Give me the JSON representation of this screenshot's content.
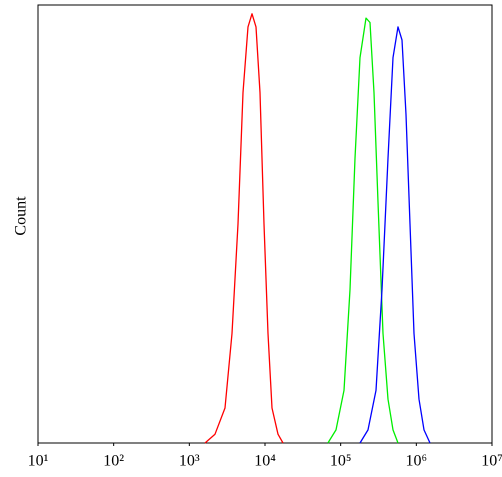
{
  "chart_data": {
    "type": "line",
    "y_label": "Count",
    "xscale": "log",
    "xlim": [
      10,
      10000000
    ],
    "ylim": [
      0,
      100
    ],
    "xticks": [
      {
        "value": 10,
        "label": "10¹"
      },
      {
        "value": 100,
        "label": "10²"
      },
      {
        "value": 1000,
        "label": "10³"
      },
      {
        "value": 10000,
        "label": "10⁴"
      },
      {
        "value": 100000,
        "label": "10⁵"
      },
      {
        "value": 1000000,
        "label": "10⁶"
      },
      {
        "value": 10000000,
        "label": "10⁷"
      }
    ],
    "series": [
      {
        "color": "#ff0000",
        "x": [
          1610,
          2183,
          2958,
          3664,
          4395,
          5117,
          5957,
          6730,
          7603,
          8590,
          9700,
          10960,
          12360,
          14860,
          17300
        ],
        "values": [
          0,
          2,
          8,
          25,
          50,
          80,
          95,
          98,
          95,
          80,
          50,
          25,
          8,
          2,
          0
        ]
      },
      {
        "color": "#00ee00",
        "x": [
          67900,
          86700,
          110700,
          132800,
          154600,
          179900,
          216300,
          243800,
          275400,
          311200,
          362400,
          421700,
          492000,
          572600
        ],
        "values": [
          0,
          3,
          12,
          35,
          65,
          88,
          97,
          96,
          80,
          55,
          25,
          10,
          3,
          0
        ]
      },
      {
        "color": "#0000ff",
        "x": [
          179900,
          229600,
          293100,
          351600,
          421700,
          492000,
          572600,
          645700,
          729400,
          824100,
          931100,
          1084000,
          1262000,
          1514000
        ],
        "values": [
          0,
          3,
          12,
          35,
          65,
          88,
          95,
          92,
          75,
          50,
          25,
          10,
          3,
          0
        ]
      }
    ]
  }
}
